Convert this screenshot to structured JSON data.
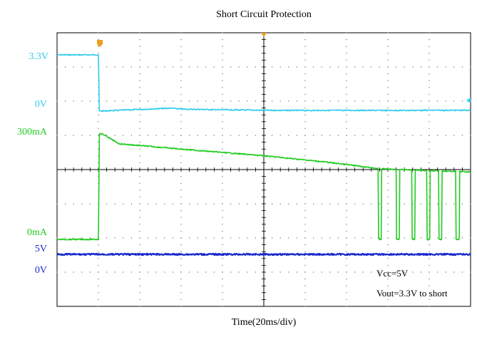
{
  "chart_data": {
    "type": "line",
    "title": "Short Circuit Protection",
    "xlabel": "Time(20ms/div)",
    "x_divisions": 10,
    "y_divisions": 8,
    "x_range_ms": [
      0,
      200
    ],
    "grid": true,
    "channel_labels": [
      {
        "text": "3.3V",
        "color": "#33ccee"
      },
      {
        "text": "0V",
        "color": "#33ccee"
      },
      {
        "text": "300mA",
        "color": "#22cc22"
      },
      {
        "text": "0mA",
        "color": "#22cc22"
      },
      {
        "text": "5V",
        "color": "#1a2acc"
      },
      {
        "text": "0V",
        "color": "#1a2acc"
      }
    ],
    "annotations": [
      "Vcc=5V",
      "Vout=3.3V to short"
    ],
    "series": [
      {
        "color": "#33ccee",
        "x_ms": [
          0,
          20,
          20.5,
          30,
          50,
          55,
          60,
          80,
          100,
          120,
          140,
          160,
          180,
          200
        ],
        "values": [
          3.3,
          3.3,
          0.0,
          0.05,
          0.15,
          0.18,
          0.12,
          0.08,
          0.05,
          0.04,
          0.05,
          0.04,
          0.05,
          0.05
        ]
      },
      {
        "color": "#22cc22",
        "x_ms": [
          0,
          20,
          20.5,
          22,
          30,
          50,
          70,
          100,
          130,
          155
        ],
        "values": [
          0,
          0,
          300,
          300,
          272,
          262,
          252,
          238,
          220,
          202
        ],
        "pulses": {
          "start_ms": [
            155.3,
            164.2,
            171.6,
            178.9,
            184.6,
            193.0
          ],
          "width_ms": 1.5,
          "values": [
            202,
            200,
            198,
            196,
            194,
            192
          ]
        }
      },
      {
        "color": "#1a2acc",
        "x_ms": [
          0,
          200
        ],
        "values": [
          5,
          5
        ]
      }
    ]
  }
}
